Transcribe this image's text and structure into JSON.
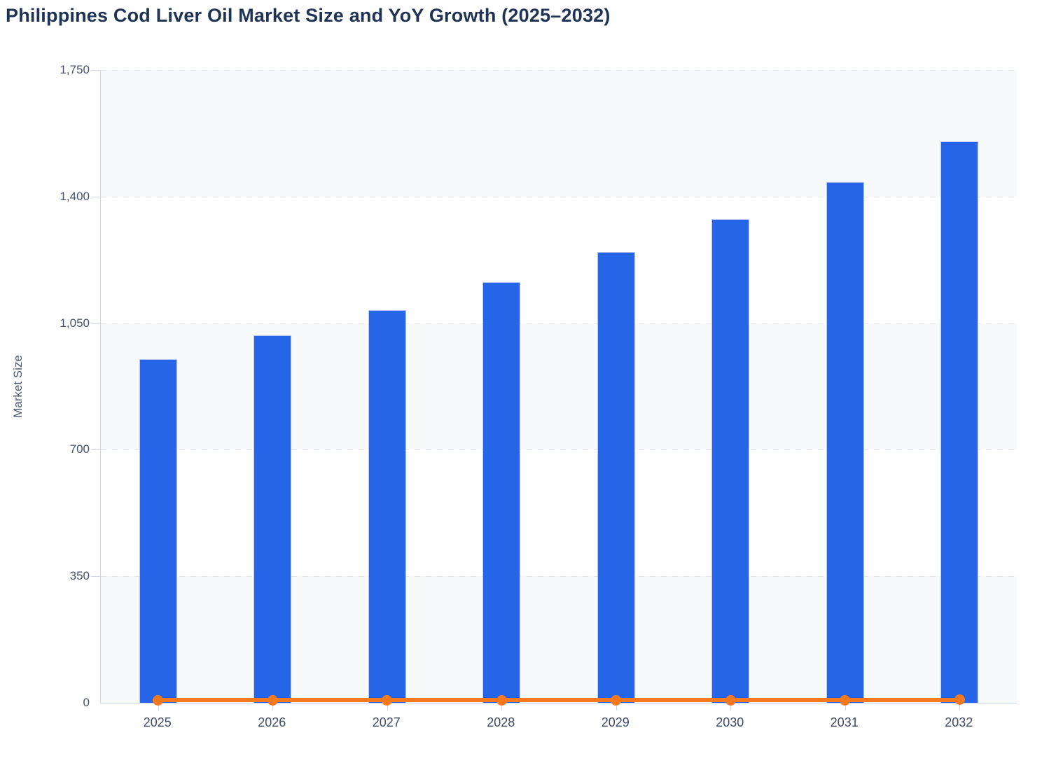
{
  "title": "Philippines Cod Liver Oil Market Size and YoY Growth (2025–2032)",
  "y_axis": {
    "label": "Market Size",
    "min": 0,
    "max": 1750,
    "ticks": [
      {
        "label": "1,750",
        "value": 1750
      },
      {
        "label": "1,400",
        "value": 1400
      },
      {
        "label": "1,050",
        "value": 1050
      },
      {
        "label": "700",
        "value": 700
      },
      {
        "label": "350",
        "value": 350
      },
      {
        "label": "0",
        "value": 0
      }
    ]
  },
  "x_axis": {
    "categories": [
      "2025",
      "2026",
      "2027",
      "2028",
      "2029",
      "2030",
      "2031",
      "2032"
    ]
  },
  "chart_data": {
    "type": "bar",
    "title": "Philippines Cod Liver Oil Market Size and YoY Growth (2025–2032)",
    "xlabel": "",
    "ylabel": "Market Size",
    "ylim": [
      0,
      1750
    ],
    "grid": "horizontal-dashed",
    "legend_position": "none",
    "plot_bands_alternating": true,
    "categories": [
      "2025",
      "2026",
      "2027",
      "2028",
      "2029",
      "2030",
      "2031",
      "2032"
    ],
    "series": [
      {
        "name": "Market Size",
        "type": "bar",
        "color": "#2664e8",
        "values": [
          950,
          1016,
          1086,
          1163,
          1247,
          1338,
          1440,
          1552
        ]
      },
      {
        "name": "YoY Growth",
        "type": "line",
        "color": "#f7791f",
        "values": [
          6.9,
          6.9,
          6.9,
          7.1,
          7.2,
          7.3,
          7.6,
          7.8
        ]
      }
    ]
  },
  "colors": {
    "bar": "#2664e8",
    "bar_border": "#b9c7f2",
    "line": "#f7791f",
    "band_fill": "#f8f9fb",
    "band_alt": "#ffffff",
    "gridline": "#e2e4ea",
    "axis_line": "#ccd5ec",
    "title_text": "#1f3354",
    "tick_text": "#47536e"
  }
}
